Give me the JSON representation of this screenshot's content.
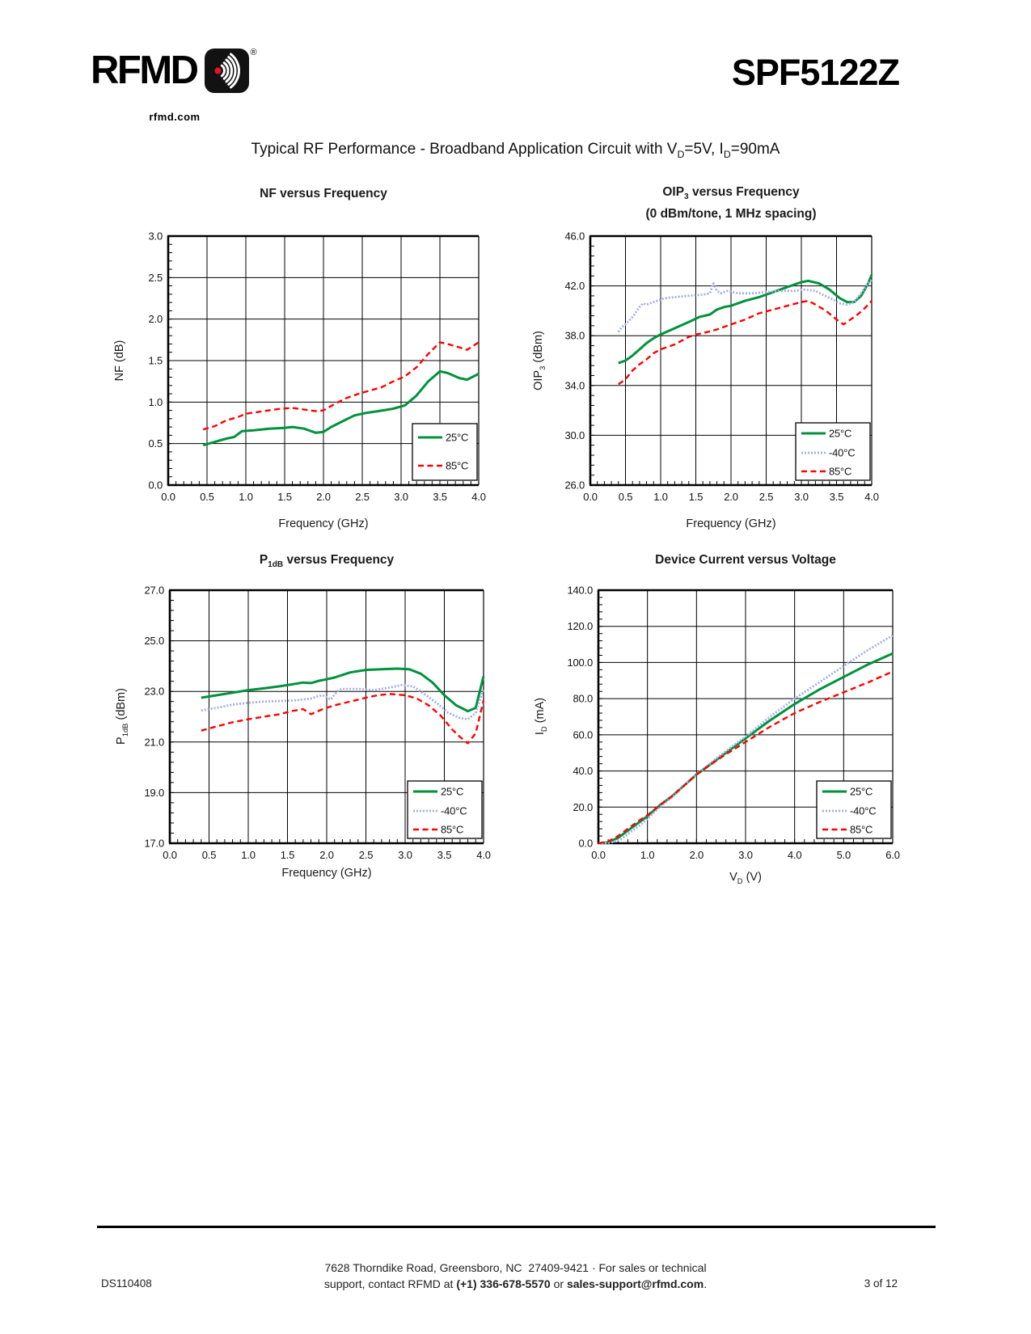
{
  "header": {
    "logo_text": "RFMD",
    "logo_reg": "®",
    "tagline": "rfmd.com",
    "part_number": "SPF5122Z"
  },
  "page_title": {
    "t1": "Typical RF Performance - Broadband Application Circuit with V",
    "s1": "D",
    "t2": "=5V, I",
    "s2": "D",
    "t3": "=90mA"
  },
  "colors": {
    "t25": "#00923C",
    "t40": "#A3AEE8",
    "t85": "#FF0000",
    "grid": "#000000"
  },
  "chart_data": [
    {
      "id": "nf",
      "type": "line",
      "title": {
        "pre": "NF versus Frequency",
        "sub": "",
        "post": ""
      },
      "subtitle": "",
      "xlabel": {
        "pre": "Frequency (GHz)",
        "sub": "",
        "post": ""
      },
      "ylabel": {
        "pre": "NF (dB)",
        "sub": "",
        "post": ""
      },
      "xlim": [
        0,
        4
      ],
      "ylim": [
        0,
        3
      ],
      "grid": true,
      "legend_position": "lower right",
      "xticks": [
        0,
        0.5,
        1,
        1.5,
        2,
        2.5,
        3,
        3.5,
        4
      ],
      "xtick_labels": [
        "0.0",
        "0.5",
        "1.0",
        "1.5",
        "2.0",
        "2.5",
        "3.0",
        "3.5",
        "4.0"
      ],
      "yticks": [
        0,
        0.5,
        1,
        1.5,
        2,
        2.5,
        3
      ],
      "ytick_labels": [
        "0.0",
        "0.5",
        "1.0",
        "1.5",
        "2.0",
        "2.5",
        "3.0"
      ],
      "series": [
        {
          "name": "25°C",
          "color_key": "t25",
          "style": "solid",
          "x": [
            0.45,
            0.6,
            0.75,
            0.85,
            0.95,
            1.1,
            1.3,
            1.5,
            1.6,
            1.75,
            1.9,
            2.0,
            2.1,
            2.25,
            2.4,
            2.55,
            2.7,
            2.9,
            3.05,
            3.2,
            3.35,
            3.5,
            3.6,
            3.75,
            3.85,
            4.0
          ],
          "y": [
            0.48,
            0.52,
            0.56,
            0.58,
            0.65,
            0.66,
            0.68,
            0.69,
            0.7,
            0.68,
            0.63,
            0.64,
            0.7,
            0.77,
            0.84,
            0.87,
            0.89,
            0.92,
            0.96,
            1.08,
            1.25,
            1.37,
            1.35,
            1.29,
            1.27,
            1.34
          ]
        },
        {
          "name": "85°C",
          "color_key": "t85",
          "style": "dashed",
          "x": [
            0.45,
            0.6,
            0.75,
            0.9,
            1.0,
            1.15,
            1.3,
            1.45,
            1.6,
            1.75,
            1.9,
            2.0,
            2.15,
            2.3,
            2.45,
            2.6,
            2.75,
            2.9,
            3.05,
            3.2,
            3.35,
            3.5,
            3.6,
            3.75,
            3.85,
            3.95,
            4.0
          ],
          "y": [
            0.67,
            0.71,
            0.78,
            0.82,
            0.86,
            0.88,
            0.9,
            0.92,
            0.93,
            0.91,
            0.89,
            0.9,
            0.98,
            1.05,
            1.1,
            1.14,
            1.18,
            1.25,
            1.31,
            1.42,
            1.58,
            1.72,
            1.7,
            1.66,
            1.63,
            1.69,
            1.72
          ]
        }
      ]
    },
    {
      "id": "oip3",
      "type": "line",
      "title": {
        "pre": "OIP",
        "sub": "3",
        "post": " versus Frequency"
      },
      "subtitle": "(0 dBm/tone, 1 MHz spacing)",
      "xlabel": {
        "pre": "Frequency (GHz)",
        "sub": "",
        "post": ""
      },
      "ylabel": {
        "pre": "OIP",
        "sub": "3",
        "post": " (dBm)"
      },
      "xlim": [
        0,
        4
      ],
      "ylim": [
        26,
        46
      ],
      "grid": true,
      "legend_position": "lower right",
      "xticks": [
        0,
        0.5,
        1,
        1.5,
        2,
        2.5,
        3,
        3.5,
        4
      ],
      "xtick_labels": [
        "0.0",
        "0.5",
        "1.0",
        "1.5",
        "2.0",
        "2.5",
        "3.0",
        "3.5",
        "4.0"
      ],
      "yticks": [
        26,
        30,
        34,
        38,
        42,
        46
      ],
      "ytick_labels": [
        "26.0",
        "30.0",
        "34.0",
        "38.0",
        "42.0",
        "46.0"
      ],
      "series": [
        {
          "name": "25°C",
          "color_key": "t25",
          "style": "solid",
          "x": [
            0.4,
            0.5,
            0.6,
            0.7,
            0.8,
            0.9,
            1.0,
            1.2,
            1.4,
            1.55,
            1.7,
            1.8,
            1.9,
            2.0,
            2.2,
            2.4,
            2.6,
            2.8,
            3.0,
            3.1,
            3.25,
            3.4,
            3.55,
            3.65,
            3.75,
            3.85,
            3.95,
            4.0
          ],
          "y": [
            35.8,
            36.0,
            36.4,
            36.9,
            37.4,
            37.8,
            38.1,
            38.6,
            39.1,
            39.5,
            39.7,
            40.1,
            40.3,
            40.4,
            40.8,
            41.1,
            41.5,
            41.9,
            42.3,
            42.4,
            42.2,
            41.7,
            41.0,
            40.7,
            40.7,
            41.2,
            42.2,
            42.9
          ]
        },
        {
          "name": "-40°C",
          "color_key": "t40",
          "style": "dotted",
          "x": [
            0.4,
            0.45,
            0.5,
            0.6,
            0.65,
            0.7,
            0.75,
            0.8,
            0.85,
            0.95,
            1.05,
            1.2,
            1.4,
            1.6,
            1.7,
            1.75,
            1.8,
            1.85,
            1.95,
            2.1,
            2.3,
            2.5,
            2.7,
            2.9,
            3.05,
            3.2,
            3.3,
            3.45,
            3.55,
            3.65,
            3.75,
            3.85,
            3.95,
            4.0
          ],
          "y": [
            38.3,
            38.7,
            38.9,
            39.5,
            39.9,
            40.3,
            40.6,
            40.5,
            40.6,
            40.8,
            41.0,
            41.1,
            41.2,
            41.3,
            41.4,
            42.2,
            41.6,
            41.4,
            41.6,
            41.4,
            41.4,
            41.5,
            41.6,
            41.6,
            41.7,
            41.6,
            41.3,
            40.9,
            40.6,
            40.5,
            40.7,
            41.4,
            42.2,
            42.5
          ]
        },
        {
          "name": "85°C",
          "color_key": "t85",
          "style": "dashed",
          "x": [
            0.4,
            0.5,
            0.6,
            0.7,
            0.8,
            0.9,
            1.0,
            1.2,
            1.4,
            1.5,
            1.6,
            1.8,
            2.0,
            2.2,
            2.4,
            2.6,
            2.8,
            3.0,
            3.1,
            3.2,
            3.35,
            3.5,
            3.6,
            3.7,
            3.8,
            3.9,
            4.0
          ],
          "y": [
            34.1,
            34.5,
            35.2,
            35.7,
            36.1,
            36.6,
            36.9,
            37.3,
            37.9,
            38.1,
            38.2,
            38.5,
            38.9,
            39.3,
            39.8,
            40.1,
            40.4,
            40.7,
            40.8,
            40.5,
            40.0,
            39.3,
            38.9,
            39.3,
            39.7,
            40.2,
            40.8
          ]
        }
      ]
    },
    {
      "id": "p1db",
      "type": "line",
      "title": {
        "pre": "P",
        "sub": "1dB",
        "post": " versus Frequency"
      },
      "subtitle": "",
      "xlabel": {
        "pre": "Frequency (GHz)",
        "sub": "",
        "post": ""
      },
      "ylabel": {
        "pre": "P",
        "sub": "1dB",
        "post": " (dBm)"
      },
      "xlim": [
        0,
        4
      ],
      "ylim": [
        17,
        27
      ],
      "grid": true,
      "legend_position": "lower right",
      "xticks": [
        0,
        0.5,
        1,
        1.5,
        2,
        2.5,
        3,
        3.5,
        4
      ],
      "xtick_labels": [
        "0.0",
        "0.5",
        "1.0",
        "1.5",
        "2.0",
        "2.5",
        "3.0",
        "3.5",
        "4.0"
      ],
      "yticks": [
        17,
        19,
        21,
        23,
        25,
        27
      ],
      "ytick_labels": [
        "17.0",
        "19.0",
        "21.0",
        "23.0",
        "25.0",
        "27.0"
      ],
      "series": [
        {
          "name": "25°C",
          "color_key": "t25",
          "style": "solid",
          "x": [
            0.4,
            0.6,
            0.8,
            1.0,
            1.2,
            1.4,
            1.6,
            1.7,
            1.8,
            1.9,
            2.0,
            2.1,
            2.3,
            2.5,
            2.7,
            2.9,
            3.05,
            3.2,
            3.35,
            3.5,
            3.65,
            3.8,
            3.9,
            4.0
          ],
          "y": [
            22.75,
            22.85,
            22.95,
            23.05,
            23.12,
            23.2,
            23.3,
            23.35,
            23.33,
            23.42,
            23.48,
            23.55,
            23.75,
            23.85,
            23.88,
            23.9,
            23.88,
            23.7,
            23.35,
            22.85,
            22.45,
            22.22,
            22.35,
            23.6
          ]
        },
        {
          "name": "-40°C",
          "color_key": "t40",
          "style": "dotted",
          "x": [
            0.4,
            0.6,
            0.8,
            1.0,
            1.2,
            1.4,
            1.6,
            1.8,
            1.9,
            1.95,
            2.05,
            2.15,
            2.2,
            2.4,
            2.6,
            2.8,
            2.95,
            3.1,
            3.2,
            3.4,
            3.55,
            3.7,
            3.8,
            3.9,
            4.0
          ],
          "y": [
            22.25,
            22.35,
            22.48,
            22.55,
            22.6,
            22.62,
            22.65,
            22.72,
            22.82,
            22.85,
            22.68,
            23.05,
            23.1,
            23.1,
            23.05,
            23.15,
            23.25,
            23.2,
            23.0,
            22.55,
            22.15,
            21.95,
            21.9,
            22.15,
            23.1
          ]
        },
        {
          "name": "85°C",
          "color_key": "t85",
          "style": "dashed",
          "x": [
            0.4,
            0.6,
            0.8,
            1.0,
            1.2,
            1.4,
            1.55,
            1.7,
            1.8,
            1.95,
            2.1,
            2.3,
            2.5,
            2.65,
            2.8,
            3.0,
            3.15,
            3.3,
            3.45,
            3.6,
            3.7,
            3.8,
            3.9,
            4.0
          ],
          "y": [
            21.45,
            21.62,
            21.78,
            21.9,
            22.0,
            22.1,
            22.22,
            22.3,
            22.1,
            22.3,
            22.45,
            22.6,
            22.75,
            22.85,
            22.9,
            22.85,
            22.72,
            22.45,
            22.05,
            21.5,
            21.2,
            20.95,
            21.35,
            22.65
          ]
        }
      ]
    },
    {
      "id": "idvv",
      "type": "line",
      "title": {
        "pre": "Device Current versus Voltage",
        "sub": "",
        "post": ""
      },
      "subtitle": "",
      "xlabel": {
        "pre": "V",
        "sub": "D",
        "post": " (V)"
      },
      "ylabel": {
        "pre": "I",
        "sub": "D",
        "post": " (mA)"
      },
      "xlim": [
        0,
        6
      ],
      "ylim": [
        0,
        140
      ],
      "grid": true,
      "legend_position": "lower right",
      "xticks": [
        0,
        1,
        2,
        3,
        4,
        5,
        6
      ],
      "xtick_labels": [
        "0.0",
        "1.0",
        "2.0",
        "3.0",
        "4.0",
        "5.0",
        "6.0"
      ],
      "yticks": [
        0,
        20,
        40,
        60,
        80,
        100,
        120,
        140
      ],
      "ytick_labels": [
        "0.0",
        "20.0",
        "40.0",
        "60.0",
        "80.0",
        "100.0",
        "120.0",
        "140.0"
      ],
      "series": [
        {
          "name": "25°C",
          "color_key": "t25",
          "style": "solid",
          "x": [
            0.0,
            0.2,
            0.4,
            0.6,
            0.8,
            1.0,
            1.25,
            1.5,
            1.75,
            2.0,
            2.5,
            3.0,
            3.5,
            4.0,
            4.5,
            5.0,
            5.5,
            6.0
          ],
          "y": [
            0,
            0.5,
            3,
            7,
            11,
            15,
            21,
            26,
            32,
            38,
            48,
            58,
            68,
            77,
            85,
            92,
            99,
            105
          ]
        },
        {
          "name": "-40°C",
          "color_key": "t40",
          "style": "dotted",
          "x": [
            0.0,
            0.25,
            0.45,
            0.65,
            0.85,
            1.0,
            1.25,
            1.5,
            1.75,
            2.0,
            2.5,
            3.0,
            3.5,
            4.0,
            4.5,
            5.0,
            5.5,
            6.0
          ],
          "y": [
            0,
            0.3,
            2,
            6,
            10,
            13.5,
            20,
            25.5,
            32,
            38,
            49,
            59,
            70,
            80,
            89,
            98,
            107,
            115
          ]
        },
        {
          "name": "85°C",
          "color_key": "t85",
          "style": "dashed",
          "x": [
            0.0,
            0.2,
            0.4,
            0.6,
            0.8,
            1.0,
            1.25,
            1.5,
            1.75,
            2.0,
            2.5,
            3.0,
            3.5,
            4.0,
            4.5,
            5.0,
            5.5,
            6.0
          ],
          "y": [
            0,
            1,
            4,
            8,
            12,
            15.5,
            21,
            26,
            32,
            38,
            47.5,
            56,
            64.5,
            72,
            78,
            83.5,
            89,
            95
          ]
        }
      ]
    }
  ],
  "footer": {
    "doc_number": "DS110408",
    "line1": "7628 Thorndike Road, Greensboro, NC  27409-9421 · For sales or technical",
    "line2_pre": "support, contact RFMD at ",
    "line2_phone": "(+1) 336-678-5570",
    "line2_mid": " or ",
    "line2_email": "sales-support@rfmd.com",
    "line2_post": ".",
    "page_number": "3 of 12"
  }
}
